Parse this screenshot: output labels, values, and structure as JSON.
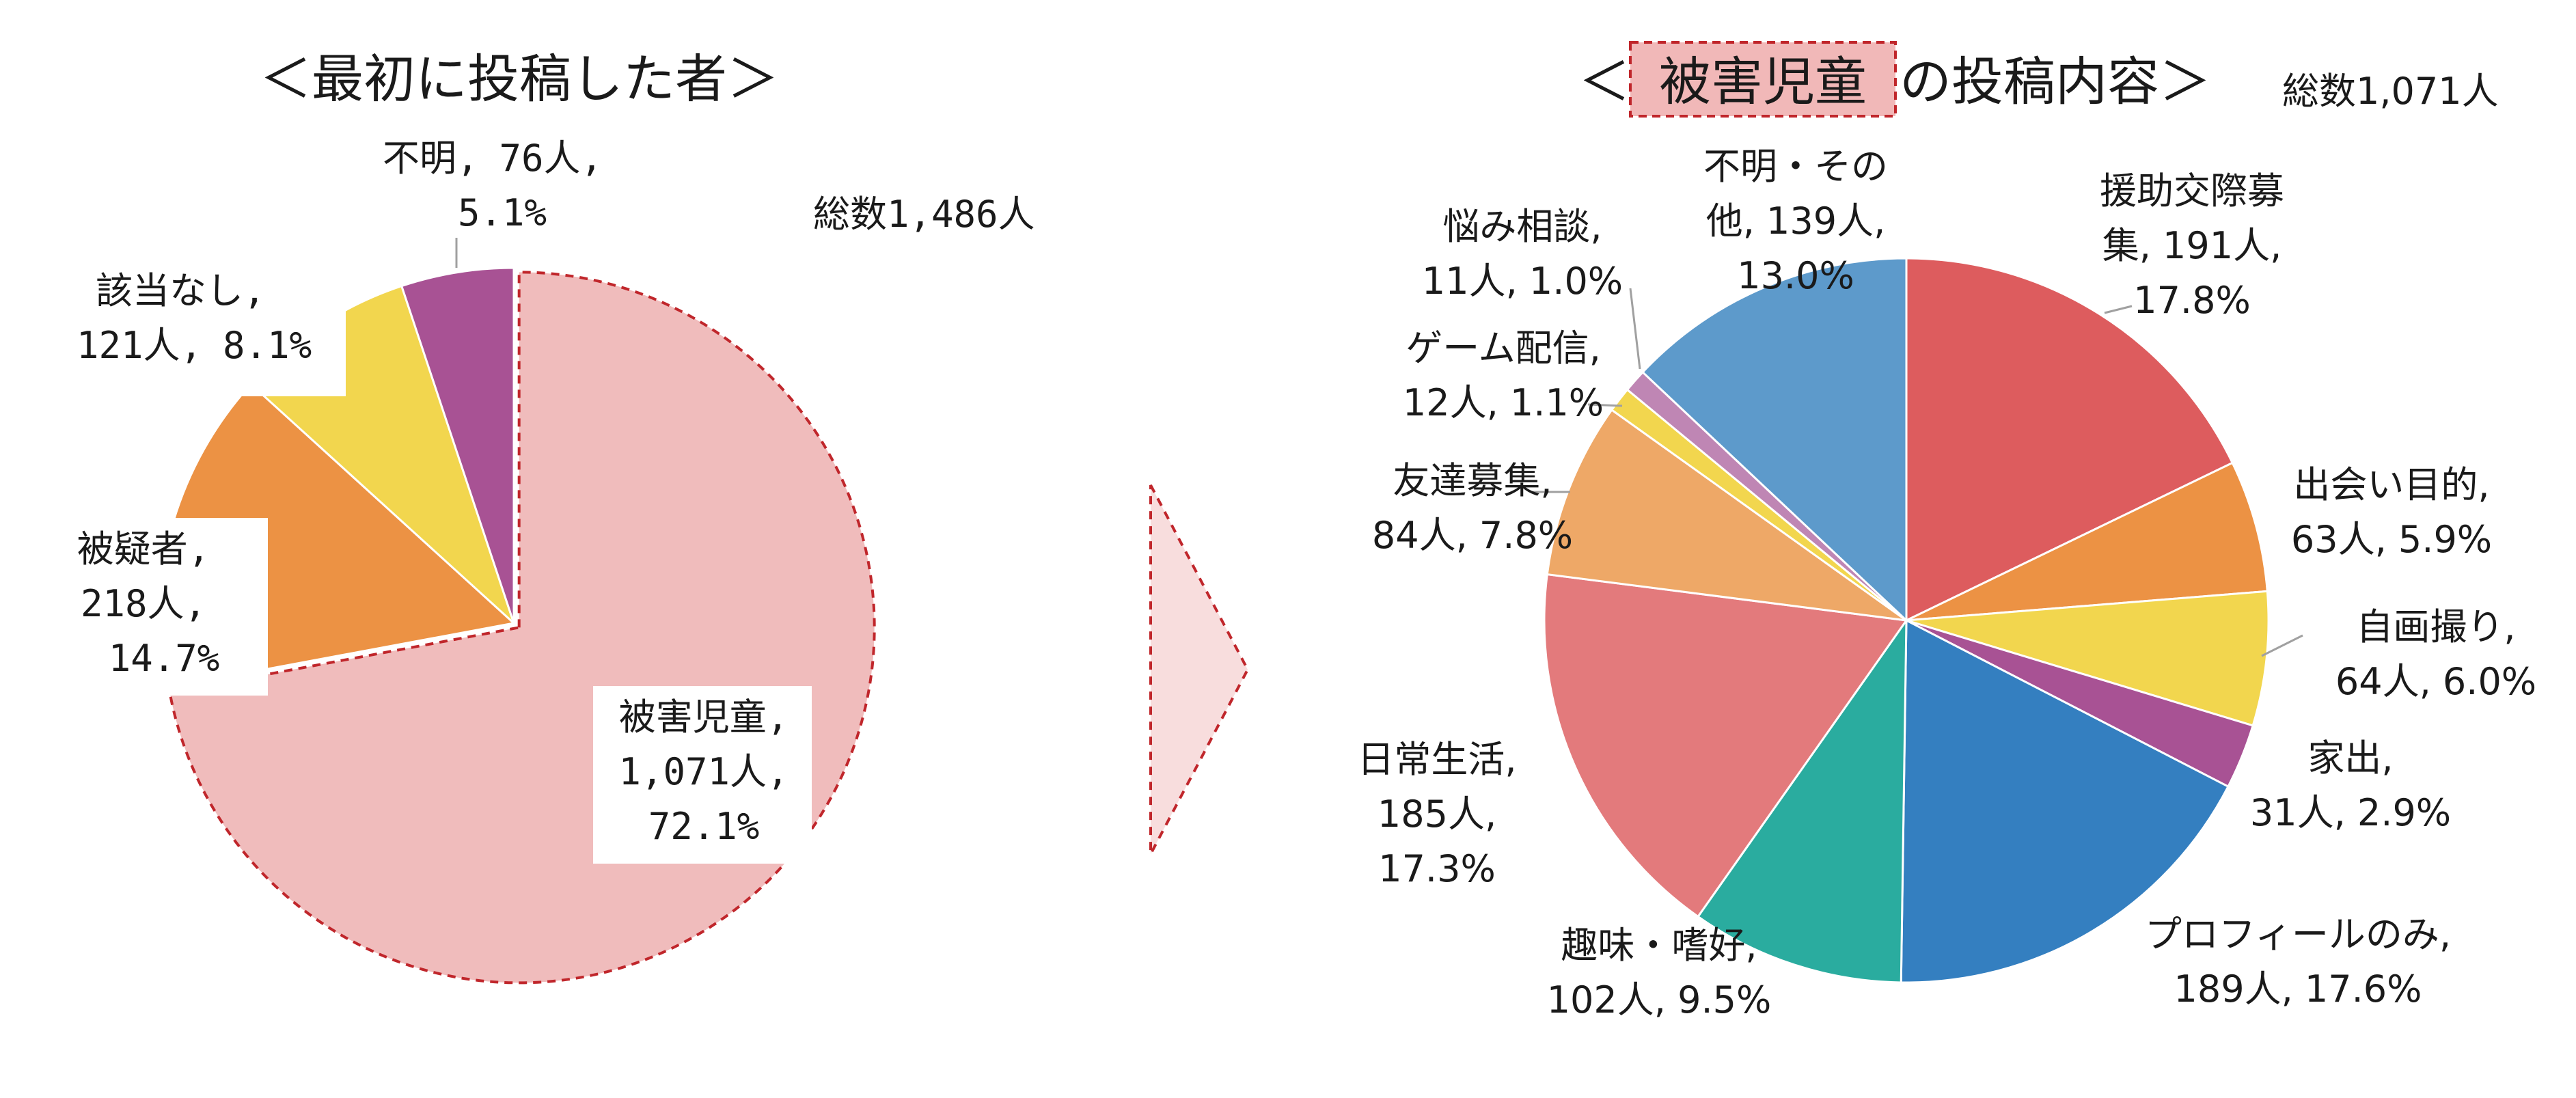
{
  "chart_data": [
    {
      "type": "pie",
      "title": "＜最初に投稿した者＞",
      "total_label": "総数1,486人",
      "slices": [
        {
          "name": "被害児童",
          "count_label": "1,071人,",
          "percent_label": "72.1%",
          "count": 1071,
          "percent": 72.1,
          "color": "#f0bcbc",
          "exploded": true
        },
        {
          "name": "被疑者,",
          "count_label": "218人,",
          "percent_label": "14.7%",
          "count": 218,
          "percent": 14.7,
          "color": "#ec9244"
        },
        {
          "name": "該当なし,",
          "count_label": "121人,",
          "percent_label": "8.1%",
          "count": 121,
          "percent": 8.1,
          "color": "#f2d64e"
        },
        {
          "name": "不明,",
          "count_label": "76人,",
          "percent_label": "5.1%",
          "count": 76,
          "percent": 5.1,
          "color": "#a85294"
        }
      ]
    },
    {
      "type": "pie",
      "title_prefix": "＜",
      "title_highlight": "被害児童",
      "title_suffix": "の投稿内容＞",
      "total_label": "総数1,071人",
      "slices": [
        {
          "name": "援助交際募集",
          "count": 191,
          "percent": 17.8,
          "color": "#dd5c5e",
          "label_lines": [
            "援助交際募",
            "集, 191人,",
            "17.8%"
          ]
        },
        {
          "name": "出会い目的",
          "count": 63,
          "percent": 5.9,
          "color": "#ec9244",
          "label_lines": [
            "出会い目的,",
            "63人, 5.9%"
          ]
        },
        {
          "name": "自画撮り",
          "count": 64,
          "percent": 6.0,
          "color": "#f2d64e",
          "label_lines": [
            "自画撮り,",
            "64人, 6.0%"
          ]
        },
        {
          "name": "家出",
          "count": 31,
          "percent": 2.9,
          "color": "#a85294",
          "label_lines": [
            "家出,",
            "31人, 2.9%"
          ]
        },
        {
          "name": "プロフィールのみ",
          "count": 189,
          "percent": 17.6,
          "color": "#347fc0",
          "label_lines": [
            "プロフィールのみ,",
            "189人, 17.6%"
          ]
        },
        {
          "name": "趣味・嗜好",
          "count": 102,
          "percent": 9.5,
          "color": "#2aac9f",
          "label_lines": [
            "趣味・嗜好,",
            "102人, 9.5%"
          ]
        },
        {
          "name": "日常生活",
          "count": 185,
          "percent": 17.3,
          "color": "#e37a7c",
          "label_lines": [
            "日常生活,",
            "185人,",
            "17.3%"
          ]
        },
        {
          "name": "友達募集",
          "count": 84,
          "percent": 7.8,
          "color": "#eea867",
          "label_lines": [
            "友達募集,",
            "84人, 7.8%"
          ]
        },
        {
          "name": "ゲーム配信",
          "count": 12,
          "percent": 1.1,
          "color": "#f2d64e",
          "label_lines": [
            "ゲーム配信,",
            "12人, 1.1%"
          ]
        },
        {
          "name": "悩み相談",
          "count": 11,
          "percent": 1.0,
          "color": "#bf86b4",
          "label_lines": [
            "悩み相談,",
            "11人, 1.0%"
          ]
        },
        {
          "name": "不明・その他",
          "count": 139,
          "percent": 13.0,
          "color": "#5d9acb",
          "label_lines": [
            "不明・その",
            "他, 139人,",
            "13.0%"
          ]
        }
      ]
    }
  ],
  "colors": {
    "dashed_outline": "#c0262b",
    "arrow_fill": "#f8dddd",
    "title_highlight_fill": "#f1b8b8",
    "slice_edge": "#ffffff",
    "leader_line": "#a0a0a0"
  }
}
